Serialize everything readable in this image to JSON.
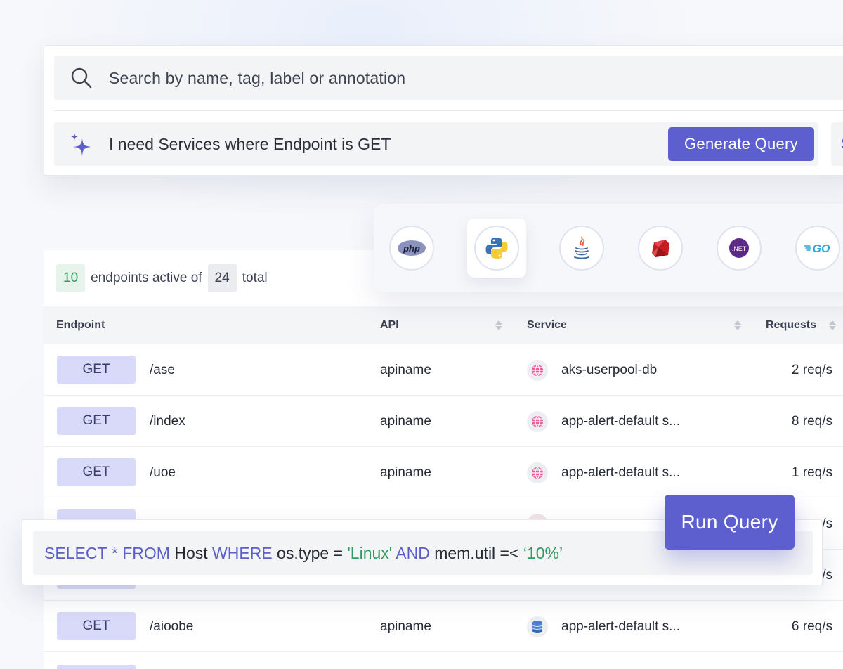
{
  "search": {
    "placeholder": "Search by name, tag, label or annotation",
    "ai_prompt": "I need Services where Endpoint is GET",
    "generate_label": "Generate Query",
    "side_button_label": "S"
  },
  "languages": [
    {
      "name": "php",
      "icon": "php-logo-icon",
      "label": "php"
    },
    {
      "name": "python",
      "icon": "python-logo-icon",
      "selected": true
    },
    {
      "name": "java",
      "icon": "java-logo-icon"
    },
    {
      "name": "ruby",
      "icon": "ruby-logo-icon"
    },
    {
      "name": ".net",
      "icon": "dotnet-logo-icon",
      "label": ".NET"
    },
    {
      "name": "go",
      "icon": "go-logo-icon",
      "label": "GO"
    }
  ],
  "summary": {
    "active": "10",
    "active_text": "endpoints active of",
    "total": "24",
    "total_text": "total"
  },
  "table": {
    "columns": [
      "Endpoint",
      "API",
      "Service",
      "Requests"
    ],
    "rows": [
      {
        "method": "GET",
        "path": "/ase",
        "api": "apiname",
        "service": "aks-userpool-db",
        "service_icon": "globe-icon",
        "requests": "2 req/s"
      },
      {
        "method": "GET",
        "path": "/index",
        "api": "apiname",
        "service": "app-alert-default s...",
        "service_icon": "globe-icon",
        "requests": "8 req/s"
      },
      {
        "method": "GET",
        "path": "/uoe",
        "api": "apiname",
        "service": "app-alert-default s...",
        "service_icon": "globe-icon",
        "requests": "1 req/s"
      },
      {
        "requests_partial": "/s"
      },
      {
        "requests_partial": "/s"
      },
      {
        "method": "GET",
        "path": "/aioobe",
        "api": "apiname",
        "service": "app-alert-default s...",
        "service_icon": "database-icon",
        "requests": "6 req/s"
      }
    ]
  },
  "query": {
    "kw_select": "SELECT",
    "star": " * ",
    "kw_from": "FROM",
    "table": " Host ",
    "kw_where": "WHERE",
    "cond1": " os.type = ",
    "val1": "'Linux'",
    "kw_and": " AND ",
    "cond2": "mem.util =< ",
    "val2": "‘10%’",
    "run_label": "Run Query"
  },
  "colors": {
    "accent": "#5d5fcf",
    "method_bg": "#d9daf9",
    "active_green": "#2f9a5f"
  }
}
